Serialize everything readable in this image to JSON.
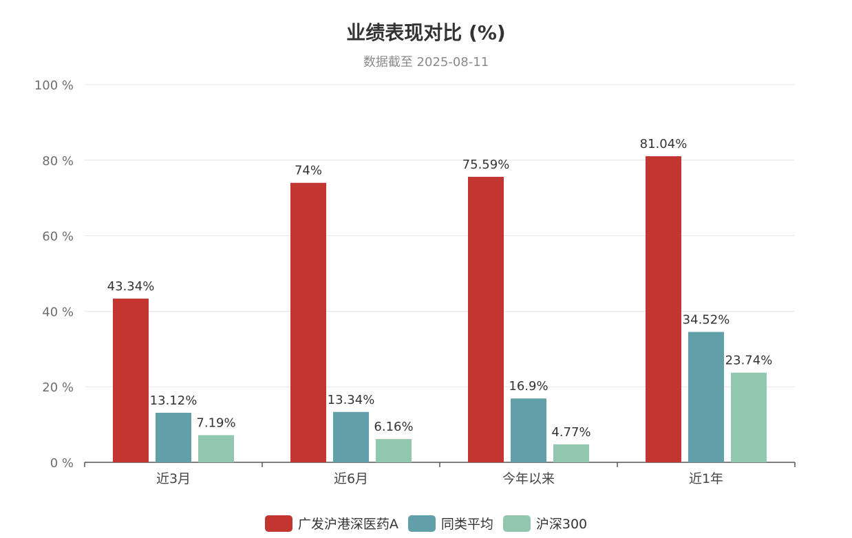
{
  "chart_data": {
    "type": "bar",
    "title": "业绩表现对比 (%)",
    "subtitle": "数据截至 2025-08-11",
    "categories": [
      "近3月",
      "近6月",
      "今年以来",
      "近1年"
    ],
    "series": [
      {
        "name": "广发沪港深医药A",
        "color": "#c23531",
        "values": [
          43.34,
          74,
          75.59,
          81.04
        ],
        "labels": [
          "43.34%",
          "74%",
          "75.59%",
          "81.04%"
        ]
      },
      {
        "name": "同类平均",
        "color": "#61a0a8",
        "values": [
          13.12,
          13.34,
          16.9,
          34.52
        ],
        "labels": [
          "13.12%",
          "13.34%",
          "16.9%",
          "34.52%"
        ]
      },
      {
        "name": "沪深300",
        "color": "#91c7ae",
        "values": [
          7.19,
          6.16,
          4.77,
          23.74
        ],
        "labels": [
          "7.19%",
          "6.16%",
          "4.77%",
          "23.74%"
        ]
      }
    ],
    "ylim": [
      0,
      100
    ],
    "yticks": [
      0,
      20,
      40,
      60,
      80,
      100
    ],
    "ytick_labels": [
      "0 %",
      "20 %",
      "40 %",
      "60 %",
      "80 %",
      "100 %"
    ],
    "xlabel": "",
    "ylabel": "",
    "grid": true,
    "legend_position": "bottom-center"
  }
}
